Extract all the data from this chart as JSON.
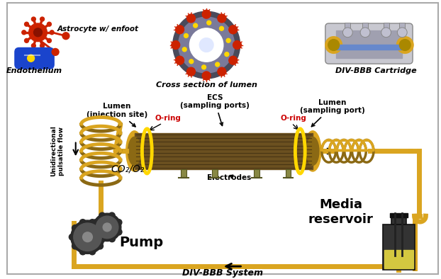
{
  "title": "DIV-BBB System",
  "labels": {
    "astrocyte": "Astrocyte w/ enfoot",
    "endothelium": "Endothelium",
    "cross_section": "Cross section of lumen",
    "cartridge": "DIV-BBB Cartridge",
    "lumen_left": "Lumen\n(injection site)",
    "ecs": "ECS\n(sampling ports)",
    "lumen_right": "Lumen\n(sampling port)",
    "oring_left": "O-ring",
    "oring_right": "O-ring",
    "electrodes": "Electrodes",
    "flow": "Unidirectional\npulsatile flow",
    "co2o2": "CO₂/O₂",
    "pump": "Pump",
    "media": "Media\nreservoir",
    "system": "DIV-BBB System"
  },
  "colors": {
    "gold": "#DAA520",
    "gold_bright": "#FFD700",
    "dark_gold": "#8B6914",
    "tube_gold": "#D4A017",
    "cartridge_body": "#7A6030",
    "cartridge_stripe": "#5C4820",
    "gear_dark": "#2A2A2A",
    "gear_mid": "#555555",
    "bottle_dark": "#222222",
    "bottle_body": "#333333",
    "bottle_liquid": "#D4C840",
    "oring_text": "#CC0000",
    "arrow": "#111111",
    "red_cell": "#CC2200",
    "blue_pill": "#1A44CC",
    "yellow_dot": "#FFD700"
  }
}
